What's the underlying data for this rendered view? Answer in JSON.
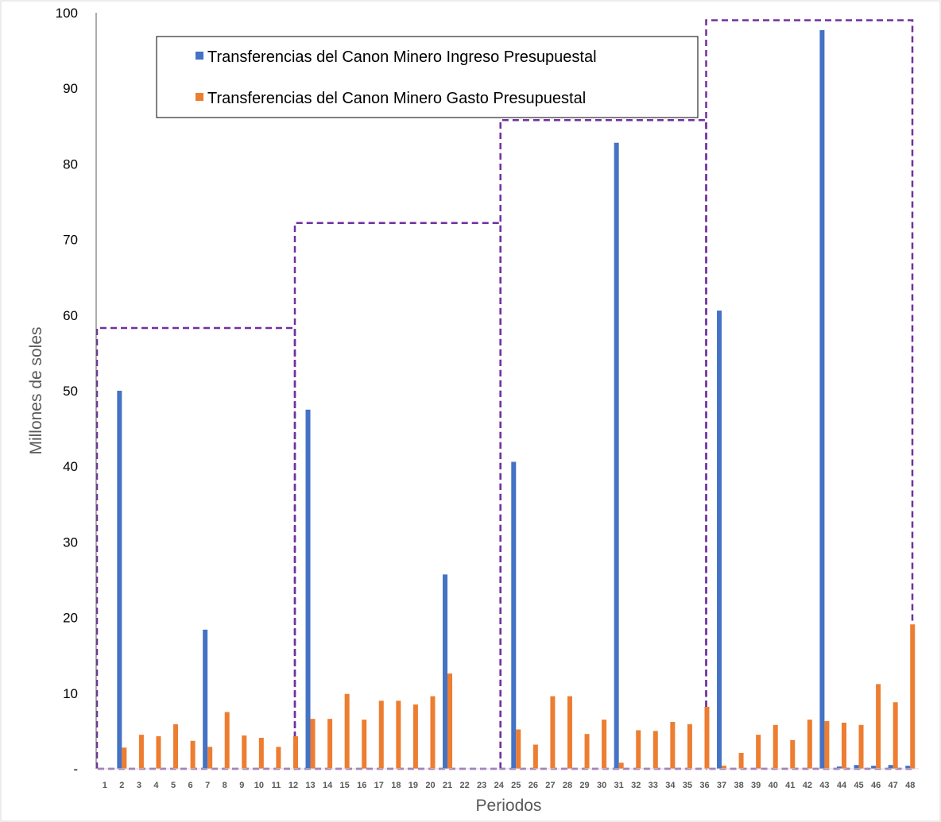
{
  "chart_data": {
    "type": "bar",
    "xlabel": "Periodos",
    "ylabel": "Millones de soles",
    "ylim": [
      0,
      100
    ],
    "yticks": [
      0,
      10,
      20,
      30,
      40,
      50,
      60,
      70,
      80,
      90,
      100
    ],
    "ytick_labels": [
      "-",
      "10",
      "20",
      "30",
      "40",
      "50",
      "60",
      "70",
      "80",
      "90",
      "100"
    ],
    "categories": [
      "1",
      "2",
      "3",
      "4",
      "5",
      "6",
      "7",
      "8",
      "9",
      "10",
      "11",
      "12",
      "13",
      "14",
      "15",
      "16",
      "17",
      "18",
      "19",
      "20",
      "21",
      "22",
      "23",
      "24",
      "25",
      "26",
      "27",
      "28",
      "29",
      "30",
      "31",
      "32",
      "33",
      "34",
      "35",
      "36",
      "37",
      "38",
      "39",
      "40",
      "41",
      "42",
      "43",
      "44",
      "45",
      "46",
      "47",
      "48"
    ],
    "series": [
      {
        "name": "Transferencias del Canon Minero Ingreso Presupuestal",
        "color": "#4472C4",
        "values": [
          0,
          50,
          0,
          0,
          0,
          0,
          18.4,
          0,
          0,
          0,
          0,
          0,
          47.5,
          0,
          0,
          0,
          0,
          0,
          0,
          0,
          25.7,
          0,
          0,
          0,
          40.6,
          0,
          0,
          0,
          0,
          0,
          82.8,
          0,
          0,
          0,
          0,
          0,
          60.6,
          0,
          0,
          0,
          0,
          0,
          97.7,
          0.3,
          0.5,
          0.4,
          0.5,
          0.4
        ]
      },
      {
        "name": "Transferencias del Canon Minero Gasto Presupuestal",
        "color": "#ED7D31",
        "values": [
          0,
          2.8,
          4.5,
          4.3,
          5.9,
          3.7,
          2.9,
          7.5,
          4.4,
          4.1,
          2.9,
          4.3,
          6.6,
          6.6,
          9.9,
          6.5,
          9.0,
          9.0,
          8.5,
          9.6,
          12.6,
          0,
          0,
          0,
          5.2,
          3.2,
          9.6,
          9.6,
          4.6,
          6.5,
          0.8,
          5.1,
          5.0,
          6.2,
          5.9,
          8.2,
          0.4,
          2.1,
          4.5,
          5.8,
          3.8,
          6.5,
          6.3,
          6.1,
          5.8,
          11.2,
          8.8,
          19.1
        ]
      }
    ],
    "annotations": [
      {
        "shape": "dashed-rectangle",
        "color": "#7030A0",
        "from_period": "1",
        "to_period": "12",
        "top_value": 58.3
      },
      {
        "shape": "dashed-rectangle",
        "color": "#7030A0",
        "from_period": "12",
        "to_period": "24",
        "top_value": 72.2
      },
      {
        "shape": "dashed-rectangle",
        "color": "#7030A0",
        "from_period": "24",
        "to_period": "36",
        "top_value": 85.8
      },
      {
        "shape": "dashed-rectangle",
        "color": "#7030A0",
        "from_period": "36",
        "to_period": "48",
        "top_value": 99.0
      }
    ],
    "legend": "top-left-inside",
    "grid": false
  }
}
